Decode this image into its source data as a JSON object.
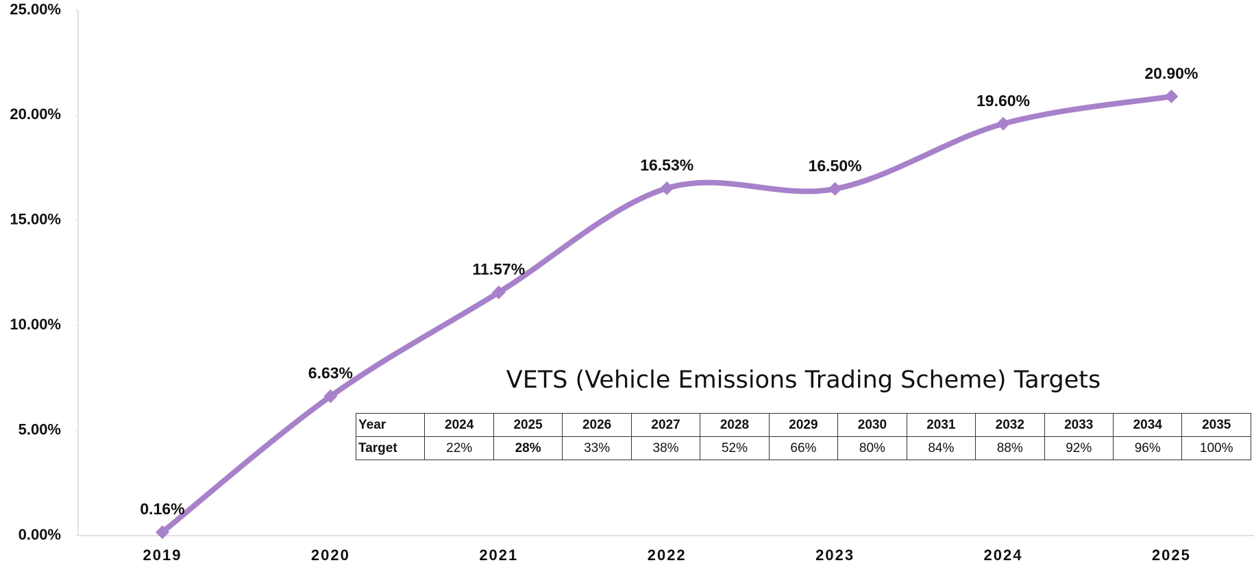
{
  "chart_data": {
    "type": "line",
    "categories": [
      "2019",
      "2020",
      "2021",
      "2022",
      "2023",
      "2024",
      "2025"
    ],
    "series": [
      {
        "color": "#a781c9",
        "values": [
          0.16,
          6.63,
          11.57,
          16.53,
          16.5,
          19.6,
          20.9
        ],
        "value_labels": [
          "0.16%",
          "6.63%",
          "11.57%",
          "16.53%",
          "16.50%",
          "19.60%",
          "20.90%"
        ]
      }
    ],
    "ylim": [
      0,
      25
    ],
    "yticks": [
      {
        "value": 0,
        "label": "0.00%"
      },
      {
        "value": 5,
        "label": "5.00%"
      },
      {
        "value": 10,
        "label": "10.00%"
      },
      {
        "value": 15,
        "label": "15.00%"
      },
      {
        "value": 20,
        "label": "20.00%"
      },
      {
        "value": 25,
        "label": "25.00%"
      }
    ],
    "smooth": true,
    "grid": false,
    "table": {
      "title": "VETS (Vehicle Emissions Trading Scheme) Targets",
      "rows": [
        [
          "Year",
          "2024",
          "2025",
          "2026",
          "2027",
          "2028",
          "2029",
          "2030",
          "2031",
          "2032",
          "2033",
          "2034",
          "2035"
        ],
        [
          "Target",
          "22%",
          "28%",
          "33%",
          "38%",
          "52%",
          "66%",
          "80%",
          "84%",
          "88%",
          "92%",
          "96%",
          "100%"
        ]
      ],
      "bold_cells": [
        [
          1,
          2
        ]
      ]
    }
  }
}
